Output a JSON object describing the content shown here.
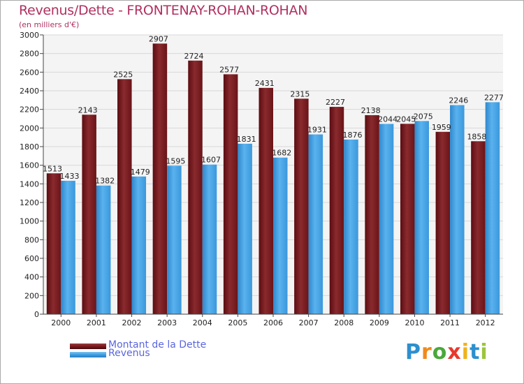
{
  "title": "Revenus/Dette - FRONTENAY-ROHAN-ROHAN",
  "subtitle": "(en milliers d'€)",
  "chart_data": {
    "type": "bar",
    "title": "Revenus/Dette - FRONTENAY-ROHAN-ROHAN",
    "ylabel": "(en milliers d'€)",
    "xlabel": "",
    "ylim": [
      0,
      3000
    ],
    "yticks": [
      0,
      200,
      400,
      600,
      800,
      1000,
      1200,
      1400,
      1600,
      1800,
      2000,
      2200,
      2400,
      2600,
      2800,
      3000
    ],
    "grid": true,
    "legend": "bottom-left",
    "categories": [
      "2000",
      "2001",
      "2002",
      "2003",
      "2004",
      "2005",
      "2006",
      "2007",
      "2008",
      "2009",
      "2010",
      "2011",
      "2012"
    ],
    "series": [
      {
        "name": "Montant de la Dette",
        "color": "#7a1a1e",
        "values": [
          1513,
          2143,
          2525,
          2907,
          2724,
          2577,
          2431,
          2315,
          2227,
          2138,
          2045,
          1959,
          1858
        ]
      },
      {
        "name": "Revenus",
        "color": "#3e9ee0",
        "values": [
          1433,
          1382,
          1479,
          1595,
          1607,
          1831,
          1682,
          1931,
          1876,
          2044,
          2075,
          2246,
          2277
        ]
      }
    ]
  },
  "legend": {
    "debt_label": "Montant de la Dette",
    "revenue_label": "Revenus",
    "debt_color": "#7a1a1e",
    "revenue_color": "#3e9ee0"
  },
  "logo": {
    "letters": [
      "P",
      "r",
      "o",
      "x",
      "i",
      "t",
      "i"
    ],
    "colors": [
      "#2d8fcf",
      "#f08a1c",
      "#49a83b",
      "#e8392c",
      "#f0b21c",
      "#2d8fcf",
      "#9bc53d"
    ]
  }
}
